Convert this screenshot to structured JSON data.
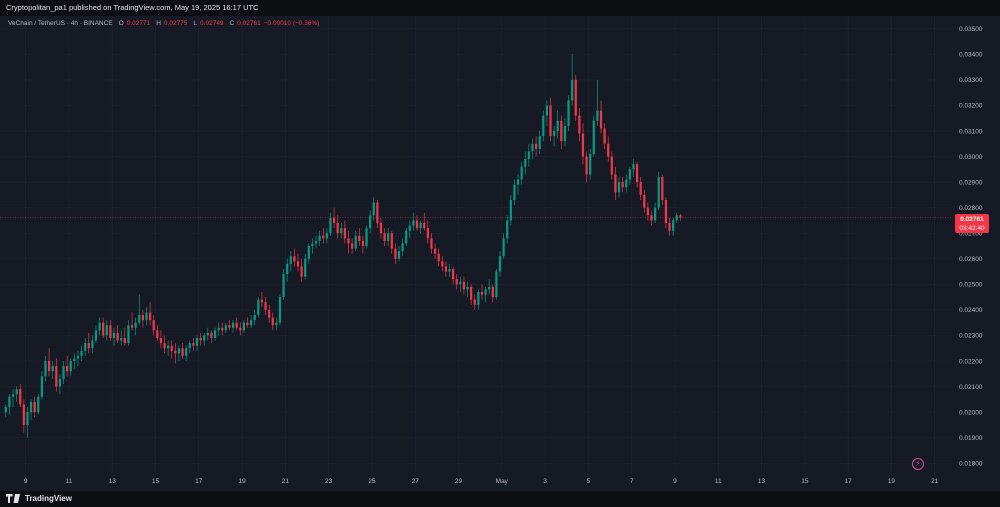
{
  "header": {
    "published": "Cryptopolitan_pa1 published on TradingView.com, May 19, 2025 16:17 UTC"
  },
  "legend": {
    "symbol": "VeChain / TetherUS · 4h · BINANCE",
    "open_label": "O",
    "open": "0.02771",
    "high_label": "H",
    "high": "0.02775",
    "low_label": "L",
    "low": "0.02749",
    "close_label": "C",
    "close": "0.02761",
    "change": "−0.00010 (−0.36%)"
  },
  "price_tag": {
    "price": "0.02761",
    "countdown": "03:42:40"
  },
  "footer": {
    "brand": "TradingView"
  },
  "icons": {
    "alert": "lightning-alert-icon",
    "logo": "tradingview-logo-icon"
  },
  "colors": {
    "up": "#089981",
    "down": "#f23645",
    "background": "#161a25",
    "grid": "#1f2331",
    "axis_text": "#b2b5be"
  },
  "chart_data": {
    "type": "candlestick",
    "title": "VeChain / TetherUS · 4h · BINANCE",
    "interval": "4h",
    "last_price": 0.02761,
    "ylim": [
      0.0175,
      0.0355
    ],
    "yticks": [
      0.018,
      0.019,
      0.02,
      0.021,
      0.022,
      0.023,
      0.024,
      0.025,
      0.026,
      0.027,
      0.028,
      0.029,
      0.03,
      0.031,
      0.032,
      0.033,
      0.034,
      0.035
    ],
    "ytick_labels": [
      "0.01800",
      "0.01900",
      "0.02000",
      "0.02100",
      "0.02200",
      "0.02300",
      "0.02400",
      "0.02500",
      "0.02600",
      "0.02700",
      "0.02800",
      "0.02900",
      "0.03000",
      "0.03100",
      "0.03200",
      "0.03300",
      "0.03400",
      "0.03500"
    ],
    "xticks": [
      {
        "label": "9",
        "day": 9
      },
      {
        "label": "11",
        "day": 11
      },
      {
        "label": "13",
        "day": 13
      },
      {
        "label": "15",
        "day": 15
      },
      {
        "label": "17",
        "day": 17
      },
      {
        "label": "19",
        "day": 19
      },
      {
        "label": "21",
        "day": 21
      },
      {
        "label": "23",
        "day": 23
      },
      {
        "label": "25",
        "day": 25
      },
      {
        "label": "27",
        "day": 27
      },
      {
        "label": "29",
        "day": 29
      },
      {
        "label": "May",
        "day": 31
      },
      {
        "label": "3",
        "day": 33
      },
      {
        "label": "5",
        "day": 35
      },
      {
        "label": "7",
        "day": 37
      },
      {
        "label": "9",
        "day": 39
      },
      {
        "label": "11",
        "day": 41
      },
      {
        "label": "13",
        "day": 43
      },
      {
        "label": "15",
        "day": 45
      },
      {
        "label": "17",
        "day": 47
      },
      {
        "label": "19",
        "day": 49
      },
      {
        "label": "21",
        "day": 51
      }
    ],
    "x_start_day": 8.0,
    "x_end_day": 51.8,
    "first_candle_day": 8.0,
    "candles_per_day": 6,
    "candles": [
      [
        0.02,
        0.0203,
        0.0198,
        0.0202
      ],
      [
        0.0202,
        0.0207,
        0.0199,
        0.0206
      ],
      [
        0.0206,
        0.0209,
        0.0202,
        0.0207
      ],
      [
        0.0207,
        0.021,
        0.0204,
        0.0209
      ],
      [
        0.0209,
        0.0211,
        0.0202,
        0.0203
      ],
      [
        0.0203,
        0.0205,
        0.0192,
        0.0195
      ],
      [
        0.0195,
        0.0202,
        0.019,
        0.02
      ],
      [
        0.02,
        0.0205,
        0.0197,
        0.0204
      ],
      [
        0.0204,
        0.0206,
        0.0198,
        0.02
      ],
      [
        0.02,
        0.0207,
        0.0199,
        0.0206
      ],
      [
        0.0206,
        0.0216,
        0.0205,
        0.0214
      ],
      [
        0.0214,
        0.0222,
        0.0212,
        0.022
      ],
      [
        0.022,
        0.0225,
        0.0214,
        0.0216
      ],
      [
        0.0216,
        0.022,
        0.0213,
        0.0218
      ],
      [
        0.0218,
        0.0221,
        0.0208,
        0.021
      ],
      [
        0.021,
        0.0215,
        0.0207,
        0.0213
      ],
      [
        0.0213,
        0.022,
        0.0211,
        0.0218
      ],
      [
        0.0218,
        0.0222,
        0.0214,
        0.0216
      ],
      [
        0.0216,
        0.0221,
        0.0214,
        0.022
      ],
      [
        0.022,
        0.0223,
        0.0217,
        0.0221
      ],
      [
        0.0221,
        0.0224,
        0.0218,
        0.0222
      ],
      [
        0.0222,
        0.0226,
        0.022,
        0.0224
      ],
      [
        0.0224,
        0.0229,
        0.0222,
        0.0227
      ],
      [
        0.0227,
        0.0231,
        0.0223,
        0.0225
      ],
      [
        0.0225,
        0.023,
        0.0223,
        0.0228
      ],
      [
        0.0228,
        0.0234,
        0.0227,
        0.0232
      ],
      [
        0.0232,
        0.0237,
        0.023,
        0.0235
      ],
      [
        0.0235,
        0.0237,
        0.0229,
        0.023
      ],
      [
        0.023,
        0.0236,
        0.0228,
        0.0234
      ],
      [
        0.0234,
        0.0236,
        0.0228,
        0.0229
      ],
      [
        0.0229,
        0.0233,
        0.0226,
        0.0231
      ],
      [
        0.0231,
        0.0234,
        0.0227,
        0.0228
      ],
      [
        0.0228,
        0.0232,
        0.0226,
        0.0229
      ],
      [
        0.0229,
        0.0233,
        0.0226,
        0.0227
      ],
      [
        0.0227,
        0.0236,
        0.0226,
        0.0234
      ],
      [
        0.0234,
        0.0239,
        0.0232,
        0.0233
      ],
      [
        0.0233,
        0.0237,
        0.023,
        0.0235
      ],
      [
        0.0235,
        0.0246,
        0.0234,
        0.0238
      ],
      [
        0.0238,
        0.024,
        0.0233,
        0.0236
      ],
      [
        0.0236,
        0.0241,
        0.0234,
        0.0239
      ],
      [
        0.0239,
        0.0243,
        0.0234,
        0.0236
      ],
      [
        0.0236,
        0.0238,
        0.023,
        0.0232
      ],
      [
        0.0232,
        0.0234,
        0.0228,
        0.0229
      ],
      [
        0.0229,
        0.0232,
        0.0225,
        0.0227
      ],
      [
        0.0227,
        0.023,
        0.0223,
        0.0225
      ],
      [
        0.0225,
        0.0228,
        0.0222,
        0.0226
      ],
      [
        0.0226,
        0.0228,
        0.0221,
        0.0224
      ],
      [
        0.0224,
        0.0227,
        0.0219,
        0.0223
      ],
      [
        0.0223,
        0.0226,
        0.022,
        0.0225
      ],
      [
        0.0225,
        0.0227,
        0.0221,
        0.0222
      ],
      [
        0.0222,
        0.0226,
        0.022,
        0.0225
      ],
      [
        0.0225,
        0.0228,
        0.0223,
        0.0227
      ],
      [
        0.0227,
        0.0229,
        0.0224,
        0.0226
      ],
      [
        0.0226,
        0.023,
        0.0224,
        0.0229
      ],
      [
        0.0229,
        0.0231,
        0.0226,
        0.0228
      ],
      [
        0.0228,
        0.0231,
        0.0226,
        0.023
      ],
      [
        0.023,
        0.0233,
        0.0228,
        0.0231
      ],
      [
        0.0231,
        0.0232,
        0.0227,
        0.0229
      ],
      [
        0.0229,
        0.0233,
        0.0228,
        0.0232
      ],
      [
        0.0232,
        0.0235,
        0.023,
        0.0233
      ],
      [
        0.0233,
        0.0235,
        0.023,
        0.0232
      ],
      [
        0.0232,
        0.0235,
        0.0231,
        0.0234
      ],
      [
        0.0234,
        0.0236,
        0.0232,
        0.0233
      ],
      [
        0.0233,
        0.0236,
        0.0231,
        0.0235
      ],
      [
        0.0235,
        0.0237,
        0.0232,
        0.0233
      ],
      [
        0.0233,
        0.0235,
        0.023,
        0.0232
      ],
      [
        0.0232,
        0.0236,
        0.0231,
        0.0235
      ],
      [
        0.0235,
        0.0237,
        0.0233,
        0.0234
      ],
      [
        0.0234,
        0.0238,
        0.0233,
        0.0236
      ],
      [
        0.0236,
        0.024,
        0.0234,
        0.0238
      ],
      [
        0.0238,
        0.0245,
        0.0237,
        0.0244
      ],
      [
        0.0244,
        0.0247,
        0.0241,
        0.0243
      ],
      [
        0.0243,
        0.0245,
        0.0238,
        0.024
      ],
      [
        0.024,
        0.0242,
        0.0235,
        0.0237
      ],
      [
        0.0237,
        0.0239,
        0.0232,
        0.0234
      ],
      [
        0.0234,
        0.0237,
        0.0232,
        0.0235
      ],
      [
        0.0235,
        0.0246,
        0.0234,
        0.0245
      ],
      [
        0.0245,
        0.0256,
        0.0244,
        0.0254
      ],
      [
        0.0254,
        0.026,
        0.0251,
        0.0258
      ],
      [
        0.0258,
        0.0263,
        0.0255,
        0.0261
      ],
      [
        0.0261,
        0.0264,
        0.0257,
        0.0259
      ],
      [
        0.0259,
        0.0262,
        0.0255,
        0.0257
      ],
      [
        0.0257,
        0.026,
        0.0251,
        0.0253
      ],
      [
        0.0253,
        0.0262,
        0.0252,
        0.026
      ],
      [
        0.026,
        0.0266,
        0.0258,
        0.0265
      ],
      [
        0.0265,
        0.0268,
        0.0262,
        0.0266
      ],
      [
        0.0266,
        0.0269,
        0.0264,
        0.0267
      ],
      [
        0.0267,
        0.0271,
        0.0265,
        0.0269
      ],
      [
        0.0269,
        0.0272,
        0.0266,
        0.0268
      ],
      [
        0.0268,
        0.0272,
        0.0266,
        0.027
      ],
      [
        0.027,
        0.0278,
        0.0269,
        0.0276
      ],
      [
        0.0276,
        0.028,
        0.0272,
        0.0274
      ],
      [
        0.0274,
        0.0277,
        0.0268,
        0.027
      ],
      [
        0.027,
        0.0274,
        0.0268,
        0.0272
      ],
      [
        0.0272,
        0.0275,
        0.0266,
        0.0268
      ],
      [
        0.0268,
        0.0271,
        0.0262,
        0.0266
      ],
      [
        0.0266,
        0.0268,
        0.0262,
        0.0264
      ],
      [
        0.0264,
        0.0271,
        0.0263,
        0.0269
      ],
      [
        0.0269,
        0.0272,
        0.0265,
        0.0267
      ],
      [
        0.0267,
        0.0269,
        0.0262,
        0.0265
      ],
      [
        0.0265,
        0.0273,
        0.0264,
        0.0272
      ],
      [
        0.0272,
        0.0279,
        0.027,
        0.0277
      ],
      [
        0.0277,
        0.0284,
        0.0275,
        0.0282
      ],
      [
        0.0282,
        0.0283,
        0.0272,
        0.0274
      ],
      [
        0.0274,
        0.0276,
        0.0268,
        0.027
      ],
      [
        0.027,
        0.0272,
        0.0265,
        0.0267
      ],
      [
        0.0267,
        0.0272,
        0.0265,
        0.027
      ],
      [
        0.027,
        0.0271,
        0.0262,
        0.0264
      ],
      [
        0.0264,
        0.0266,
        0.0258,
        0.026
      ],
      [
        0.026,
        0.0265,
        0.0259,
        0.0263
      ],
      [
        0.0263,
        0.0268,
        0.0261,
        0.0266
      ],
      [
        0.0266,
        0.0272,
        0.0265,
        0.0271
      ],
      [
        0.0271,
        0.0275,
        0.0268,
        0.0273
      ],
      [
        0.0273,
        0.0278,
        0.0271,
        0.0275
      ],
      [
        0.0275,
        0.0277,
        0.0271,
        0.0272
      ],
      [
        0.0272,
        0.0275,
        0.027,
        0.0274
      ],
      [
        0.0274,
        0.0278,
        0.0271,
        0.0272
      ],
      [
        0.0272,
        0.0275,
        0.0266,
        0.0268
      ],
      [
        0.0268,
        0.027,
        0.0262,
        0.0264
      ],
      [
        0.0264,
        0.0266,
        0.026,
        0.0262
      ],
      [
        0.0262,
        0.0264,
        0.0257,
        0.0259
      ],
      [
        0.0259,
        0.0261,
        0.0255,
        0.0257
      ],
      [
        0.0257,
        0.0259,
        0.0253,
        0.0255
      ],
      [
        0.0255,
        0.0258,
        0.0253,
        0.0256
      ],
      [
        0.0256,
        0.0257,
        0.025,
        0.0252
      ],
      [
        0.0252,
        0.0254,
        0.0248,
        0.025
      ],
      [
        0.025,
        0.0253,
        0.0247,
        0.0251
      ],
      [
        0.0251,
        0.0253,
        0.0246,
        0.0248
      ],
      [
        0.0248,
        0.0251,
        0.0245,
        0.0249
      ],
      [
        0.0249,
        0.025,
        0.0242,
        0.0244
      ],
      [
        0.0244,
        0.0246,
        0.024,
        0.0242
      ],
      [
        0.0242,
        0.0248,
        0.024,
        0.0247
      ],
      [
        0.0247,
        0.025,
        0.0244,
        0.0246
      ],
      [
        0.0246,
        0.0249,
        0.0243,
        0.0248
      ],
      [
        0.0248,
        0.0252,
        0.0246,
        0.0249
      ],
      [
        0.0249,
        0.025,
        0.0243,
        0.0245
      ],
      [
        0.0245,
        0.0256,
        0.0244,
        0.0255
      ],
      [
        0.0255,
        0.0263,
        0.0253,
        0.0261
      ],
      [
        0.0261,
        0.027,
        0.026,
        0.0268
      ],
      [
        0.0268,
        0.0277,
        0.0266,
        0.0275
      ],
      [
        0.0275,
        0.0285,
        0.0273,
        0.0283
      ],
      [
        0.0283,
        0.0291,
        0.0281,
        0.0289
      ],
      [
        0.0289,
        0.0293,
        0.0285,
        0.0291
      ],
      [
        0.0291,
        0.0298,
        0.0289,
        0.0296
      ],
      [
        0.0296,
        0.0302,
        0.0293,
        0.0299
      ],
      [
        0.0299,
        0.0305,
        0.0296,
        0.0302
      ],
      [
        0.0302,
        0.0307,
        0.0299,
        0.0305
      ],
      [
        0.0305,
        0.0308,
        0.03,
        0.0303
      ],
      [
        0.0303,
        0.031,
        0.0301,
        0.0308
      ],
      [
        0.0308,
        0.0318,
        0.0306,
        0.0316
      ],
      [
        0.0316,
        0.0322,
        0.0312,
        0.032
      ],
      [
        0.032,
        0.0323,
        0.0306,
        0.0308
      ],
      [
        0.0308,
        0.0312,
        0.0304,
        0.031
      ],
      [
        0.031,
        0.0318,
        0.0307,
        0.0314
      ],
      [
        0.0314,
        0.0316,
        0.0303,
        0.0306
      ],
      [
        0.0306,
        0.0315,
        0.0304,
        0.0312
      ],
      [
        0.0312,
        0.0324,
        0.031,
        0.0322
      ],
      [
        0.0322,
        0.034,
        0.032,
        0.033
      ],
      [
        0.033,
        0.0332,
        0.0314,
        0.0316
      ],
      [
        0.0316,
        0.0319,
        0.0306,
        0.0309
      ],
      [
        0.0309,
        0.0313,
        0.0297,
        0.03
      ],
      [
        0.03,
        0.0302,
        0.029,
        0.0293
      ],
      [
        0.0293,
        0.0303,
        0.0291,
        0.0301
      ],
      [
        0.0301,
        0.0316,
        0.03,
        0.0314
      ],
      [
        0.0314,
        0.033,
        0.0312,
        0.0318
      ],
      [
        0.0318,
        0.0322,
        0.0309,
        0.0311
      ],
      [
        0.0311,
        0.0313,
        0.0303,
        0.0305
      ],
      [
        0.0305,
        0.0308,
        0.0298,
        0.03
      ],
      [
        0.03,
        0.0302,
        0.0291,
        0.0293
      ],
      [
        0.0293,
        0.0296,
        0.0283,
        0.0286
      ],
      [
        0.0286,
        0.0292,
        0.0284,
        0.029
      ],
      [
        0.029,
        0.0292,
        0.0286,
        0.0288
      ],
      [
        0.0288,
        0.0293,
        0.0286,
        0.0291
      ],
      [
        0.0291,
        0.0296,
        0.0289,
        0.0295
      ],
      [
        0.0295,
        0.0299,
        0.0292,
        0.0297
      ],
      [
        0.0297,
        0.0298,
        0.0288,
        0.029
      ],
      [
        0.029,
        0.0292,
        0.0283,
        0.0285
      ],
      [
        0.0285,
        0.0287,
        0.0278,
        0.028
      ],
      [
        0.028,
        0.0282,
        0.0275,
        0.0277
      ],
      [
        0.0277,
        0.0279,
        0.0273,
        0.0275
      ],
      [
        0.0275,
        0.0282,
        0.0274,
        0.028
      ],
      [
        0.028,
        0.0294,
        0.0279,
        0.0292
      ],
      [
        0.0292,
        0.0293,
        0.0281,
        0.0283
      ],
      [
        0.0283,
        0.0284,
        0.0272,
        0.0274
      ],
      [
        0.0274,
        0.0276,
        0.0269,
        0.0271
      ],
      [
        0.0271,
        0.0276,
        0.0269,
        0.0275
      ],
      [
        0.0275,
        0.0278,
        0.0274,
        0.0277
      ],
      [
        0.0277,
        0.02775,
        0.02749,
        0.02761
      ]
    ]
  }
}
